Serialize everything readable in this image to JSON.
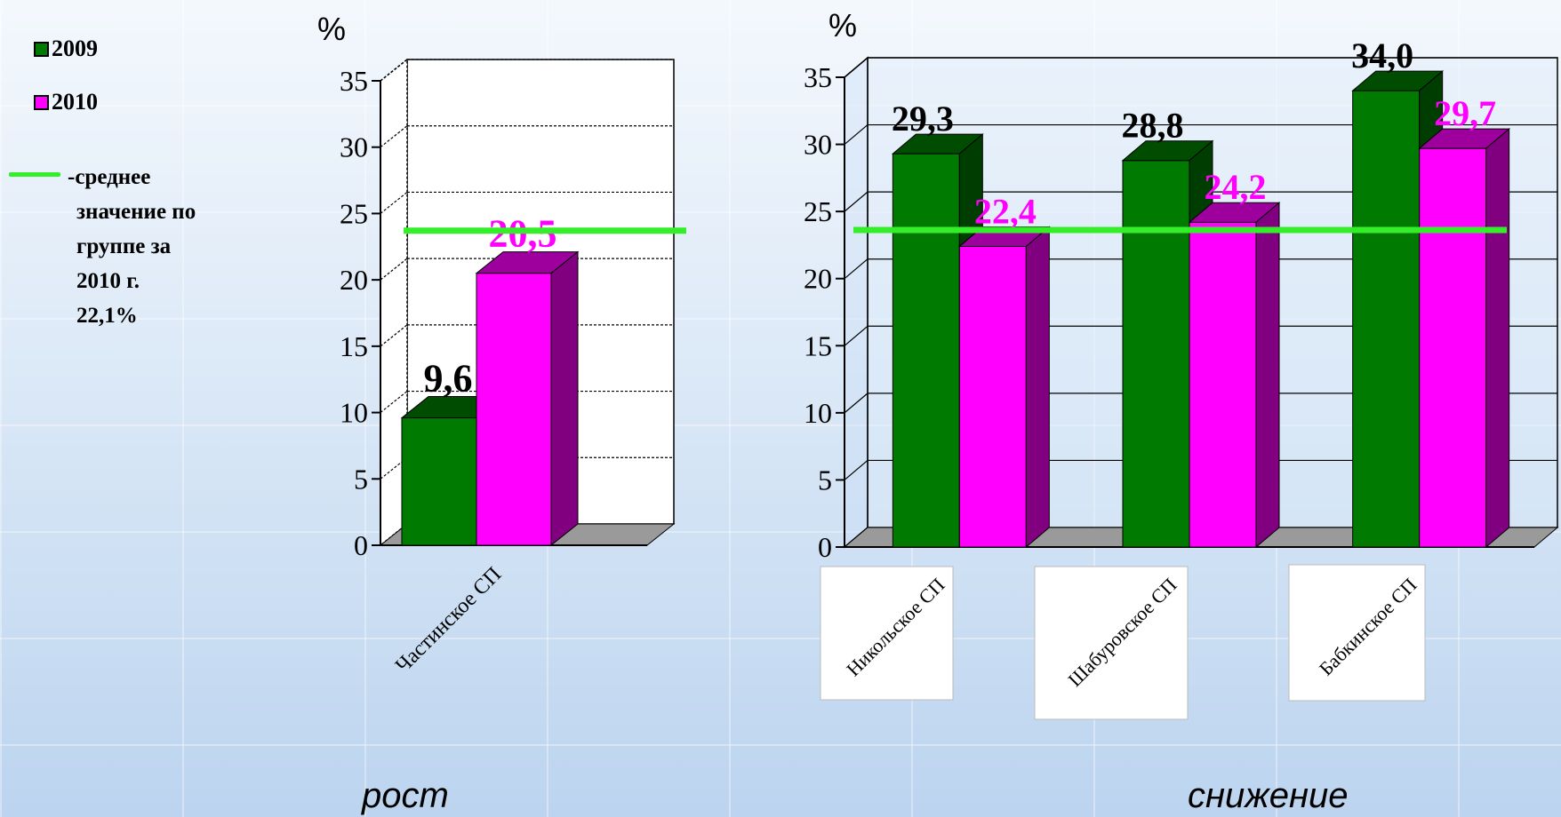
{
  "legend": {
    "items": [
      {
        "label": "2009",
        "color": "#007a00"
      },
      {
        "label": "2010",
        "color": "#ff00ff"
      }
    ],
    "average_lines": [
      "-среднее",
      "значение по",
      "группе за",
      "2010 г.",
      "22,1%"
    ],
    "average_color": "#35ee2a"
  },
  "footer": {
    "left": "рост",
    "right": "снижение"
  },
  "chart_data": [
    {
      "type": "bar",
      "title": "",
      "xlabel": "",
      "ylabel": "%",
      "ylim": [
        0,
        35
      ],
      "yticks": [
        "0",
        "5",
        "10",
        "15",
        "20",
        "25",
        "30",
        "35"
      ],
      "categories": [
        "Частинское СП"
      ],
      "series": [
        {
          "name": "2009",
          "values": [
            9.6
          ],
          "labels": [
            "9,6"
          ],
          "color": "#007a00"
        },
        {
          "name": "2010",
          "values": [
            20.5
          ],
          "labels": [
            "20,5"
          ],
          "color": "#ff00ff"
        }
      ],
      "average": 22.1,
      "grid": true
    },
    {
      "type": "bar",
      "title": "",
      "xlabel": "",
      "ylabel": "%",
      "ylim": [
        0,
        35
      ],
      "yticks": [
        "0",
        "5",
        "10",
        "15",
        "20",
        "25",
        "30",
        "35"
      ],
      "categories": [
        "Никольское СП",
        "Шабуровское СП",
        "Бабкинское СП"
      ],
      "series": [
        {
          "name": "2009",
          "values": [
            29.3,
            28.8,
            34.0
          ],
          "labels": [
            "29,3",
            "28,8",
            "34,0"
          ],
          "color": "#007a00"
        },
        {
          "name": "2010",
          "values": [
            22.4,
            24.2,
            29.7
          ],
          "labels": [
            "22,4",
            "24,2",
            "29,7"
          ],
          "color": "#ff00ff"
        }
      ],
      "average": 22.1,
      "grid": true
    }
  ]
}
